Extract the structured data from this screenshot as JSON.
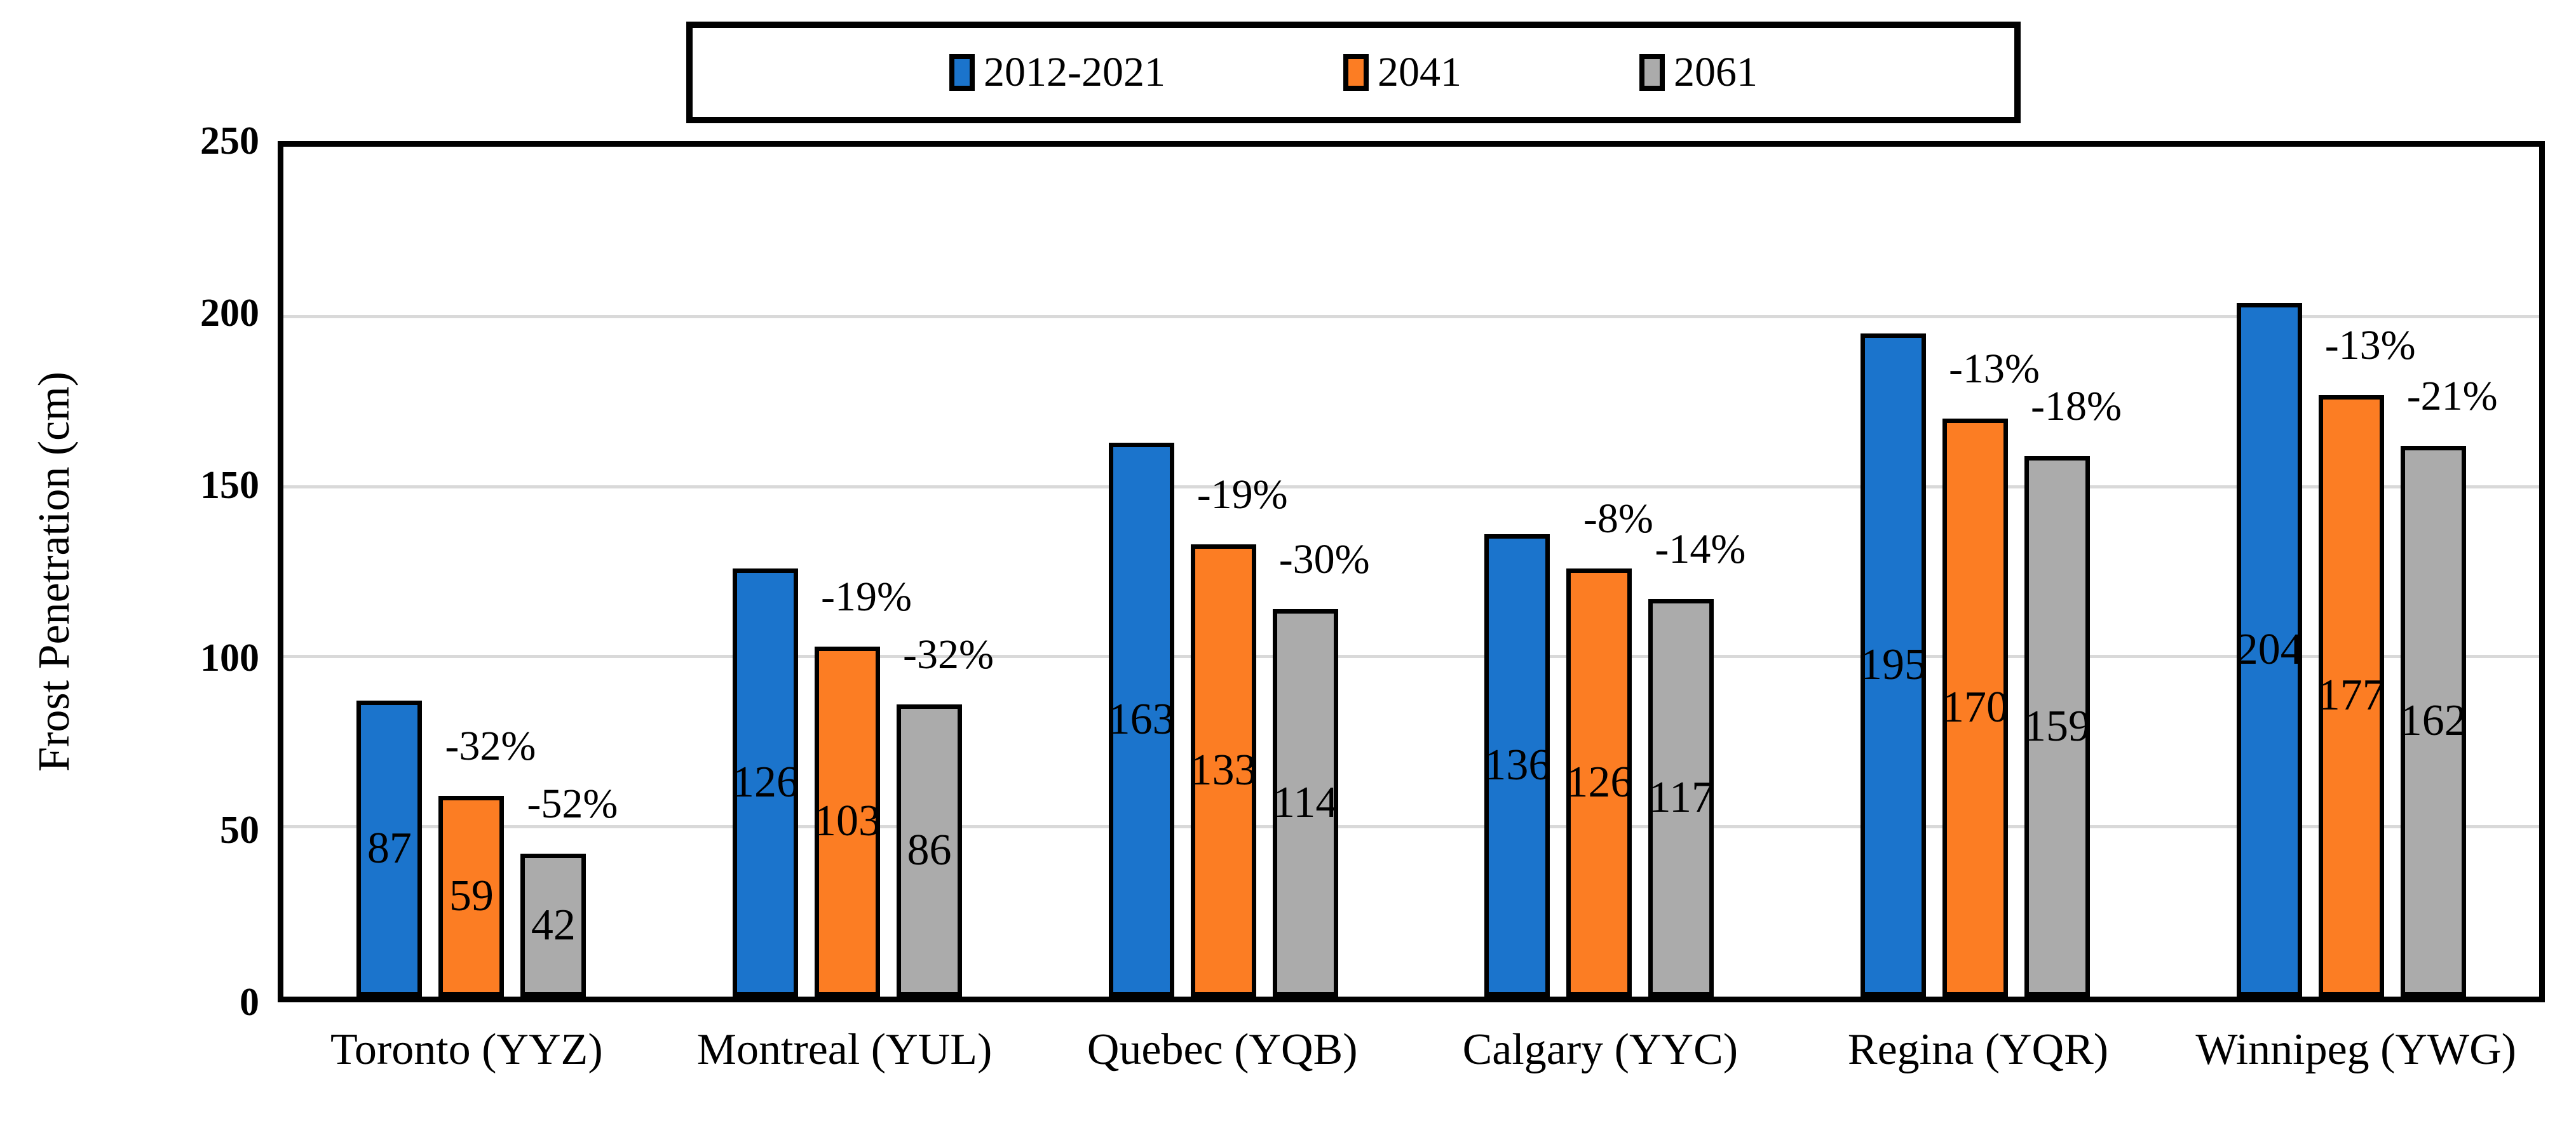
{
  "chart_data": {
    "type": "bar",
    "title": "",
    "xlabel": "",
    "ylabel": "Frost Penetration (cm)",
    "ylim": [
      0,
      250
    ],
    "yticks": [
      0,
      50,
      100,
      150,
      200,
      250
    ],
    "grid": "horizontal",
    "gridline_color": "#D9D9D9",
    "legend_position": "top-center",
    "bar_outline_color": "#000000",
    "categories": [
      "Toronto (YYZ)",
      "Montreal (YUL)",
      "Quebec (YQB)",
      "Calgary (YYC)",
      "Regina (YQR)",
      "Winnipeg (YWG)"
    ],
    "series": [
      {
        "name": "2012-2021",
        "color": "#1B74CC",
        "values": [
          87,
          126,
          163,
          136,
          195,
          204
        ],
        "pct_labels": [
          "",
          "",
          "",
          "",
          "",
          ""
        ]
      },
      {
        "name": "2041",
        "color": "#FC7D23",
        "values": [
          59,
          103,
          133,
          126,
          170,
          177
        ],
        "pct_labels": [
          "-32%",
          "-19%",
          "-19%",
          "-8%",
          "-13%",
          "-13%"
        ]
      },
      {
        "name": "2061",
        "color": "#ABABAB",
        "values": [
          42,
          86,
          114,
          117,
          159,
          162
        ],
        "pct_labels": [
          "-52%",
          "-32%",
          "-30%",
          "-14%",
          "-18%",
          "-21%"
        ]
      }
    ],
    "value_labels": "inside bars, vertically centered"
  }
}
